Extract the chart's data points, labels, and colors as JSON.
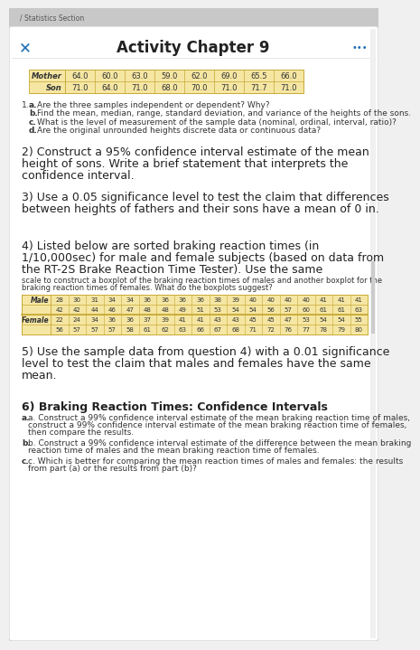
{
  "title": "Activity Chapter 9",
  "title_color": "#222222",
  "x_color": "#1a6bb5",
  "dots_color": "#1a6bb5",
  "table1_header": [
    "Mother",
    "Son"
  ],
  "table1_cols": [
    "64.0",
    "60.0",
    "63.0",
    "59.0",
    "62.0",
    "69.0",
    "65.5",
    "66.0"
  ],
  "table1_row2": [
    "71.0",
    "64.0",
    "71.0",
    "68.0",
    "70.0",
    "71.0",
    "71.7",
    "71.0"
  ],
  "table1_bg": "#f5e6a3",
  "section1_items": [
    [
      "a.",
      "Are the three samples independent or dependent? Why?"
    ],
    [
      "b.",
      "Find the mean, median, range, standard deviation, and variance of the heights of the sons."
    ],
    [
      "c.",
      "What is the level of measurement of the sample data (nominal, ordinal, interval, ratio)?"
    ],
    [
      "d.",
      "Are the original unrounded heights discrete data or continuous data?"
    ]
  ],
  "section2_lines": [
    "2) Construct a 95% confidence interval estimate of the mean",
    "height of sons. Write a brief statement that interprets the",
    "confidence interval."
  ],
  "section3_lines": [
    "3) Use a 0.05 significance level to test the claim that differences",
    "between heights of fathers and their sons have a mean of 0 in."
  ],
  "section4_big_lines": [
    "4) Listed below are sorted braking reaction times (in",
    "1/10,000sec) for male and female subjects (based on data from",
    "the RT-2S Brake Reaction Time Tester). Use the same"
  ],
  "section4_small_lines": [
    "scale to construct a boxplot of the braking reaction times of males and another boxplot for the",
    "braking reaction times of females. What do the boxplots suggest?"
  ],
  "table2_bg": "#f5e6a3",
  "male_row1": [
    "28",
    "30",
    "31",
    "34",
    "34",
    "36",
    "36",
    "36",
    "36",
    "38",
    "39",
    "40",
    "40",
    "40",
    "40",
    "41",
    "41",
    "41"
  ],
  "male_row2": [
    "42",
    "42",
    "44",
    "46",
    "47",
    "48",
    "48",
    "49",
    "51",
    "53",
    "54",
    "54",
    "56",
    "57",
    "60",
    "61",
    "61",
    "63"
  ],
  "female_row1": [
    "22",
    "24",
    "34",
    "36",
    "36",
    "37",
    "39",
    "41",
    "41",
    "43",
    "43",
    "45",
    "45",
    "47",
    "53",
    "54",
    "54",
    "55"
  ],
  "female_row2": [
    "56",
    "57",
    "57",
    "57",
    "58",
    "61",
    "62",
    "63",
    "66",
    "67",
    "68",
    "71",
    "72",
    "76",
    "77",
    "78",
    "79",
    "80"
  ],
  "section5_lines": [
    "5) Use the sample data from question 4) with a 0.01 significance",
    "level to test the claim that males and females have the same",
    "mean."
  ],
  "section6_title": "6) Braking Reaction Times: Confidence Intervals",
  "section6_a_lines": [
    "a. Construct a 99% confidence interval estimate of the mean braking reaction time of males,",
    "construct a 99% confidence interval estimate of the mean braking reaction time of females,",
    "then compare the results."
  ],
  "section6_b_lines": [
    "b. Construct a 99% confidence interval estimate of the difference between the mean braking",
    "reaction time of males and the mean braking reaction time of females."
  ],
  "section6_c_lines": [
    "c. Which is better for comparing the mean reaction times of males and females: the results",
    "from part (a) or the results from part (b)?"
  ]
}
